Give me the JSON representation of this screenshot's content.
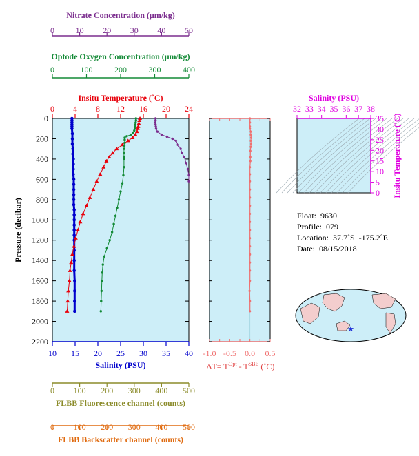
{
  "chart_data": {
    "type": "scatter",
    "profile_panel": {
      "ylabel": "Pressure (decibar)",
      "ylim": [
        0,
        2200
      ],
      "yticks": [
        0,
        200,
        400,
        600,
        800,
        1000,
        1200,
        1400,
        1600,
        1800,
        2000,
        2200
      ],
      "axes": {
        "nitrate": {
          "label": "Nitrate Concentration (μm/kg)",
          "range": [
            0,
            50
          ],
          "ticks": [
            0,
            10,
            20,
            30,
            40,
            50
          ],
          "color": "#7b2d8e"
        },
        "oxygen": {
          "label": "Optode Oxygen Concentration (μm/kg)",
          "range": [
            0,
            400
          ],
          "ticks": [
            0,
            100,
            200,
            300,
            400
          ],
          "color": "#138a36"
        },
        "temperature": {
          "label": "Insitu Temperature (˚C)",
          "range": [
            0,
            24
          ],
          "ticks": [
            0,
            4,
            8,
            12,
            16,
            20,
            24
          ],
          "color": "#e8000b"
        },
        "salinity": {
          "label": "Salinity (PSU)",
          "range": [
            10,
            40
          ],
          "ticks": [
            10,
            15,
            20,
            25,
            30,
            35,
            40
          ],
          "color": "#0000cc"
        },
        "fluorescence": {
          "label": "FLBB Fluorescence channel (counts)",
          "range": [
            0,
            500
          ],
          "ticks": [
            0,
            100,
            200,
            300,
            400,
            500
          ],
          "color": "#8b8b2a"
        },
        "backscatter": {
          "label": "FLBB Backscatter channel (counts)",
          "range": [
            0,
            500
          ],
          "ticks": [
            0,
            100,
            200,
            300,
            400,
            500
          ],
          "color": "#e06b10"
        }
      },
      "series": [
        {
          "name": "Salinity (PSU)",
          "axis": "salinity",
          "marker": "circle",
          "points": [
            [
              14.3,
              0
            ],
            [
              14.3,
              20
            ],
            [
              14.3,
              40
            ],
            [
              14.3,
              60
            ],
            [
              14.3,
              80
            ],
            [
              14.3,
              100
            ],
            [
              14.4,
              150
            ],
            [
              14.4,
              200
            ],
            [
              14.4,
              250
            ],
            [
              14.5,
              300
            ],
            [
              14.5,
              350
            ],
            [
              14.6,
              400
            ],
            [
              14.6,
              450
            ],
            [
              14.6,
              500
            ],
            [
              14.6,
              550
            ],
            [
              14.7,
              600
            ],
            [
              14.7,
              650
            ],
            [
              14.7,
              700
            ],
            [
              14.7,
              750
            ],
            [
              14.7,
              800
            ],
            [
              14.7,
              850
            ],
            [
              14.8,
              900
            ],
            [
              14.8,
              950
            ],
            [
              14.8,
              1000
            ],
            [
              14.8,
              1050
            ],
            [
              14.8,
              1100
            ],
            [
              14.8,
              1150
            ],
            [
              14.8,
              1200
            ],
            [
              14.8,
              1300
            ],
            [
              14.8,
              1400
            ],
            [
              14.8,
              1500
            ],
            [
              14.9,
              1600
            ],
            [
              14.9,
              1700
            ],
            [
              14.9,
              1800
            ],
            [
              14.9,
              1900
            ]
          ]
        },
        {
          "name": "Insitu Temperature (˚C)",
          "axis": "temperature",
          "marker": "triangle",
          "points": [
            [
              15.4,
              0
            ],
            [
              15.3,
              20
            ],
            [
              15.2,
              50
            ],
            [
              15.1,
              80
            ],
            [
              15.0,
              100
            ],
            [
              14.9,
              130
            ],
            [
              14.6,
              160
            ],
            [
              14.1,
              190
            ],
            [
              13.3,
              220
            ],
            [
              12.3,
              260
            ],
            [
              11.3,
              300
            ],
            [
              10.6,
              340
            ],
            [
              10.0,
              380
            ],
            [
              9.5,
              420
            ],
            [
              9.0,
              480
            ],
            [
              8.4,
              550
            ],
            [
              7.8,
              620
            ],
            [
              7.2,
              700
            ],
            [
              6.6,
              780
            ],
            [
              6.0,
              860
            ],
            [
              5.4,
              940
            ],
            [
              4.9,
              1020
            ],
            [
              4.5,
              1100
            ],
            [
              4.1,
              1180
            ],
            [
              3.8,
              1260
            ],
            [
              3.5,
              1340
            ],
            [
              3.3,
              1420
            ],
            [
              3.1,
              1500
            ],
            [
              3.0,
              1600
            ],
            [
              2.8,
              1700
            ],
            [
              2.7,
              1800
            ],
            [
              2.6,
              1900
            ]
          ]
        },
        {
          "name": "Optode Oxygen Concentration (μm/kg)",
          "axis": "oxygen",
          "marker": "dot",
          "points": [
            [
              245,
              0
            ],
            [
              245,
              20
            ],
            [
              244,
              40
            ],
            [
              243,
              60
            ],
            [
              242,
              80
            ],
            [
              242,
              100
            ],
            [
              240,
              120
            ],
            [
              236,
              140
            ],
            [
              230,
              160
            ],
            [
              218,
              175
            ],
            [
              212,
              190
            ],
            [
              212,
              210
            ],
            [
              212,
              240
            ],
            [
              211,
              270
            ],
            [
              210,
              300
            ],
            [
              210,
              340
            ],
            [
              210,
              380
            ],
            [
              210,
              400
            ],
            [
              210,
              480
            ],
            [
              208,
              560
            ],
            [
              205,
              640
            ],
            [
              200,
              720
            ],
            [
              195,
              800
            ],
            [
              190,
              880
            ],
            [
              185,
              960
            ],
            [
              180,
              1040
            ],
            [
              175,
              1120
            ],
            [
              168,
              1200
            ],
            [
              160,
              1280
            ],
            [
              152,
              1360
            ],
            [
              148,
              1440
            ],
            [
              146,
              1520
            ],
            [
              145,
              1600
            ],
            [
              144,
              1700
            ],
            [
              143,
              1800
            ],
            [
              142,
              1900
            ]
          ]
        },
        {
          "name": "Nitrate Concentration (μm/kg)",
          "axis": "nitrate",
          "marker": "dot",
          "points": [
            [
              37.8,
              0
            ],
            [
              37.8,
              20
            ],
            [
              37.7,
              40
            ],
            [
              37.8,
              60
            ],
            [
              37.9,
              80
            ],
            [
              38.0,
              100
            ],
            [
              38.5,
              130
            ],
            [
              40.0,
              160
            ],
            [
              42.0,
              180
            ],
            [
              44.0,
              200
            ],
            [
              45.3,
              220
            ],
            [
              46.0,
              260
            ],
            [
              47.0,
              300
            ],
            [
              47.5,
              340
            ],
            [
              48.3,
              380
            ],
            [
              49.0,
              440
            ],
            [
              49.6,
              500
            ],
            [
              50.0,
              560
            ],
            [
              50.0,
              620
            ]
          ]
        }
      ]
    },
    "delta_panel": {
      "xlabel": "ΔT= T^Opt - T^SBE (˚C)",
      "xlim": [
        -1.0,
        0.5
      ],
      "xticks": [
        "-1.0",
        "-0.5",
        "0.0",
        "0.5"
      ],
      "series": [
        {
          "points": [
            [
              0.0,
              0
            ],
            [
              0.0,
              40
            ],
            [
              0.0,
              80
            ],
            [
              0.0,
              100
            ],
            [
              0.02,
              130
            ],
            [
              0.02,
              160
            ],
            [
              0.03,
              190
            ],
            [
              0.02,
              220
            ],
            [
              0.03,
              250
            ],
            [
              0.02,
              280
            ],
            [
              0.01,
              320
            ],
            [
              0.01,
              380
            ],
            [
              0.01,
              420
            ],
            [
              0.0,
              480
            ],
            [
              0.0,
              550
            ],
            [
              0.0,
              620
            ],
            [
              0.0,
              700
            ],
            [
              0.0,
              780
            ],
            [
              0.0,
              860
            ],
            [
              0.0,
              940
            ],
            [
              0.0,
              1020
            ],
            [
              0.0,
              1100
            ],
            [
              0.0,
              1180
            ],
            [
              0.0,
              1260
            ],
            [
              0.0,
              1340
            ],
            [
              0.0,
              1420
            ],
            [
              0.0,
              1500
            ],
            [
              0.0,
              1600
            ],
            [
              -0.01,
              1700
            ],
            [
              0.0,
              1800
            ],
            [
              0.0,
              1900
            ]
          ]
        }
      ]
    },
    "ts_panel": {
      "xlabel": "Salinity (PSU)",
      "ylabel": "Insitu Temperature (˚C)",
      "xticks": [
        32,
        33,
        34,
        35,
        36,
        37,
        38
      ],
      "yticks": [
        0,
        5,
        10,
        15,
        20,
        25,
        30,
        35
      ],
      "xlim": [
        32,
        38
      ],
      "ylim": [
        0,
        35
      ]
    },
    "colors": {
      "plot_bg": "#cdeef8",
      "frame": "#000000",
      "salinity": "#0000cc",
      "temperature": "#e8000b",
      "oxygen": "#138a36",
      "nitrate": "#7b2d8e",
      "fluorescence": "#8b8b2a",
      "backscatter": "#e06b10",
      "delta": "#f07070",
      "ts": "#e000e0"
    }
  },
  "info": {
    "float_label": "Float:",
    "float_value": "9630",
    "profile_label": "Profile:",
    "profile_value": "079",
    "location_label": "Location:",
    "location_value": "37.7˚S  -175.2˚E",
    "date_label": "Date:",
    "date_value": "08/15/2018"
  }
}
